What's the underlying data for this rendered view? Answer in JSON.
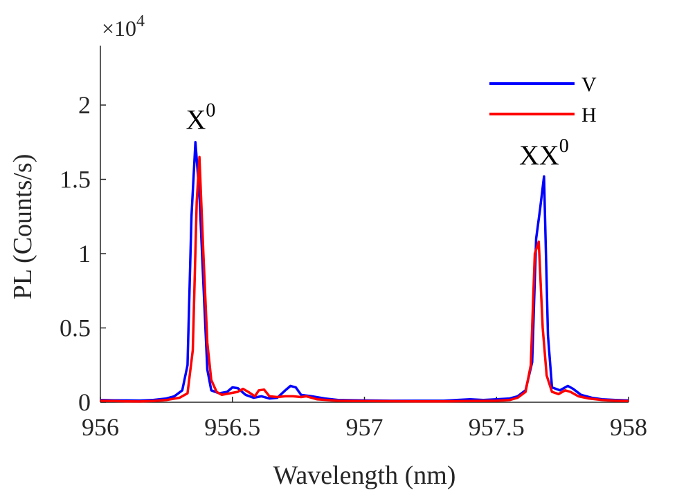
{
  "chart_data": {
    "type": "line",
    "title": "",
    "xlabel": "Wavelength (nm)",
    "ylabel": "PL (Counts/s)",
    "xlim": [
      956,
      958
    ],
    "ylim": [
      0,
      24000
    ],
    "y_exponent_label": "×10",
    "y_exponent_power": "4",
    "xticks": [
      956,
      956.5,
      957,
      957.5,
      958
    ],
    "xtick_labels": [
      "956",
      "956.5",
      "957",
      "957.5",
      "958"
    ],
    "yticks": [
      0,
      5000,
      10000,
      15000,
      20000
    ],
    "ytick_labels": [
      "0",
      "0.5",
      "1",
      "1.5",
      "2"
    ],
    "grid": false,
    "legend_position": "top-right",
    "series": [
      {
        "name": "V",
        "color": "#0000ff",
        "points": [
          [
            956.0,
            150
          ],
          [
            956.05,
            130
          ],
          [
            956.1,
            120
          ],
          [
            956.15,
            110
          ],
          [
            956.2,
            150
          ],
          [
            956.25,
            250
          ],
          [
            956.28,
            400
          ],
          [
            956.31,
            800
          ],
          [
            956.33,
            2500
          ],
          [
            956.345,
            12500
          ],
          [
            956.36,
            17500
          ],
          [
            956.375,
            14000
          ],
          [
            956.39,
            8000
          ],
          [
            956.405,
            2200
          ],
          [
            956.42,
            800
          ],
          [
            956.45,
            600
          ],
          [
            956.48,
            700
          ],
          [
            956.5,
            1000
          ],
          [
            956.52,
            950
          ],
          [
            956.55,
            500
          ],
          [
            956.58,
            300
          ],
          [
            956.61,
            400
          ],
          [
            956.64,
            250
          ],
          [
            956.67,
            300
          ],
          [
            956.7,
            800
          ],
          [
            956.72,
            1100
          ],
          [
            956.74,
            1000
          ],
          [
            956.76,
            500
          ],
          [
            956.8,
            400
          ],
          [
            956.85,
            250
          ],
          [
            956.9,
            150
          ],
          [
            957.0,
            120
          ],
          [
            957.1,
            100
          ],
          [
            957.2,
            100
          ],
          [
            957.3,
            100
          ],
          [
            957.35,
            150
          ],
          [
            957.4,
            200
          ],
          [
            957.45,
            150
          ],
          [
            957.5,
            200
          ],
          [
            957.55,
            250
          ],
          [
            957.58,
            400
          ],
          [
            957.61,
            800
          ],
          [
            957.635,
            2700
          ],
          [
            957.65,
            11000
          ],
          [
            957.665,
            13000
          ],
          [
            957.68,
            15200
          ],
          [
            957.695,
            4500
          ],
          [
            957.71,
            1000
          ],
          [
            957.74,
            800
          ],
          [
            957.77,
            1100
          ],
          [
            957.79,
            900
          ],
          [
            957.82,
            500
          ],
          [
            957.86,
            300
          ],
          [
            957.9,
            200
          ],
          [
            957.95,
            150
          ],
          [
            958.0,
            120
          ]
        ]
      },
      {
        "name": "H",
        "color": "#ff0000",
        "points": [
          [
            956.0,
            100
          ],
          [
            956.05,
            80
          ],
          [
            956.1,
            60
          ],
          [
            956.15,
            50
          ],
          [
            956.2,
            80
          ],
          [
            956.25,
            150
          ],
          [
            956.3,
            300
          ],
          [
            956.33,
            600
          ],
          [
            956.35,
            3500
          ],
          [
            956.365,
            13500
          ],
          [
            956.375,
            16500
          ],
          [
            956.39,
            10000
          ],
          [
            956.405,
            4000
          ],
          [
            956.42,
            1500
          ],
          [
            956.44,
            700
          ],
          [
            956.46,
            500
          ],
          [
            956.49,
            600
          ],
          [
            956.52,
            700
          ],
          [
            956.54,
            900
          ],
          [
            956.56,
            700
          ],
          [
            956.585,
            400
          ],
          [
            956.6,
            800
          ],
          [
            956.62,
            850
          ],
          [
            956.64,
            400
          ],
          [
            956.67,
            350
          ],
          [
            956.7,
            400
          ],
          [
            956.73,
            400
          ],
          [
            956.76,
            350
          ],
          [
            956.78,
            400
          ],
          [
            956.82,
            200
          ],
          [
            956.9,
            100
          ],
          [
            957.0,
            80
          ],
          [
            957.1,
            70
          ],
          [
            957.2,
            60
          ],
          [
            957.3,
            60
          ],
          [
            957.4,
            80
          ],
          [
            957.5,
            100
          ],
          [
            957.55,
            150
          ],
          [
            957.58,
            300
          ],
          [
            957.61,
            700
          ],
          [
            957.63,
            2500
          ],
          [
            957.645,
            10000
          ],
          [
            957.66,
            10800
          ],
          [
            957.675,
            5000
          ],
          [
            957.69,
            1800
          ],
          [
            957.71,
            700
          ],
          [
            957.735,
            550
          ],
          [
            957.76,
            800
          ],
          [
            957.78,
            700
          ],
          [
            957.81,
            400
          ],
          [
            957.85,
            250
          ],
          [
            957.9,
            150
          ],
          [
            957.95,
            100
          ],
          [
            958.0,
            80
          ]
        ]
      }
    ],
    "annotations": [
      {
        "base": "X",
        "sup": "0",
        "x": 956.38,
        "y": 18400
      },
      {
        "base": "XX",
        "sup": "0",
        "x": 957.68,
        "y": 16000
      }
    ]
  }
}
